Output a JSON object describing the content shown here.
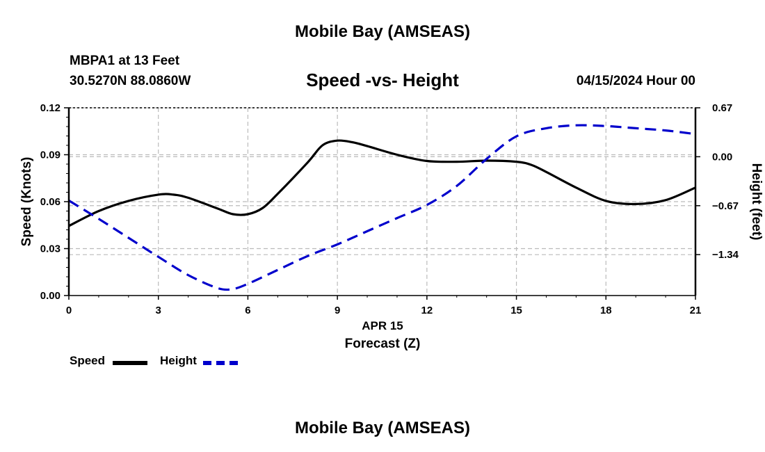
{
  "header": {
    "title": "Mobile Bay (AMSEAS)",
    "station": "MBPA1 at 13 Feet",
    "coords": "30.5270N  88.0860W",
    "chart_title": "Speed -vs- Height",
    "run_time": "04/15/2024 Hour 00"
  },
  "footer": {
    "title": "Mobile Bay (AMSEAS)"
  },
  "colors": {
    "speed": "#000000",
    "height": "#0000cc",
    "grid": "#bbbbbb"
  },
  "legend": {
    "speed_label": "Speed",
    "height_label": "Height"
  },
  "chart_data": {
    "type": "line",
    "title": "Speed -vs- Height",
    "xlabel": "Forecast (Z)",
    "xlabel_date": "APR 15",
    "ylabel": "Speed (Knots)",
    "y2label": "Height (feet)",
    "xlim": [
      0,
      21
    ],
    "ylim": [
      0,
      0.12
    ],
    "y2lim": [
      -1.9,
      0.67
    ],
    "x_ticks": [
      0,
      3,
      6,
      9,
      12,
      15,
      18,
      21
    ],
    "x_tick_labels": [
      "0",
      "3",
      "6",
      "9",
      "12",
      "15",
      "18",
      "21"
    ],
    "y_ticks": [
      0,
      0.03,
      0.06,
      0.09,
      0.12
    ],
    "y_tick_labels": [
      "0.00",
      "0.03",
      "0.06",
      "0.09",
      "0.12"
    ],
    "y2_ticks": [
      0.67,
      0.0,
      -0.67,
      -1.34
    ],
    "y2_tick_labels": [
      "0.67",
      "0.00",
      "−0.67",
      "−1.34"
    ],
    "grid": true,
    "series": [
      {
        "name": "Speed",
        "axis": "left",
        "style": "solid",
        "x": [
          0,
          1,
          2,
          3,
          3.5,
          4,
          5,
          5.5,
          6,
          6.5,
          7,
          8,
          8.5,
          9,
          9.5,
          10,
          11,
          12,
          13,
          14,
          15,
          15.5,
          16,
          17,
          18,
          19,
          20,
          21
        ],
        "values": [
          0.0445,
          0.054,
          0.0605,
          0.0645,
          0.0645,
          0.0625,
          0.0555,
          0.052,
          0.052,
          0.056,
          0.065,
          0.085,
          0.096,
          0.099,
          0.098,
          0.0955,
          0.09,
          0.086,
          0.0855,
          0.0862,
          0.0855,
          0.0835,
          0.079,
          0.069,
          0.0605,
          0.0585,
          0.061,
          0.069
        ]
      },
      {
        "name": "Height",
        "axis": "right",
        "style": "dashed",
        "x": [
          0,
          1,
          2,
          3,
          4,
          5,
          5.5,
          6,
          7,
          8,
          9,
          10,
          11,
          12,
          13,
          14,
          15,
          16,
          17,
          18,
          19,
          20,
          21
        ],
        "values": [
          -0.6,
          -0.85,
          -1.11,
          -1.37,
          -1.62,
          -1.8,
          -1.81,
          -1.74,
          -1.55,
          -1.36,
          -1.2,
          -1.02,
          -0.84,
          -0.66,
          -0.4,
          -0.03,
          0.28,
          0.39,
          0.43,
          0.42,
          0.39,
          0.36,
          0.31
        ]
      }
    ]
  }
}
